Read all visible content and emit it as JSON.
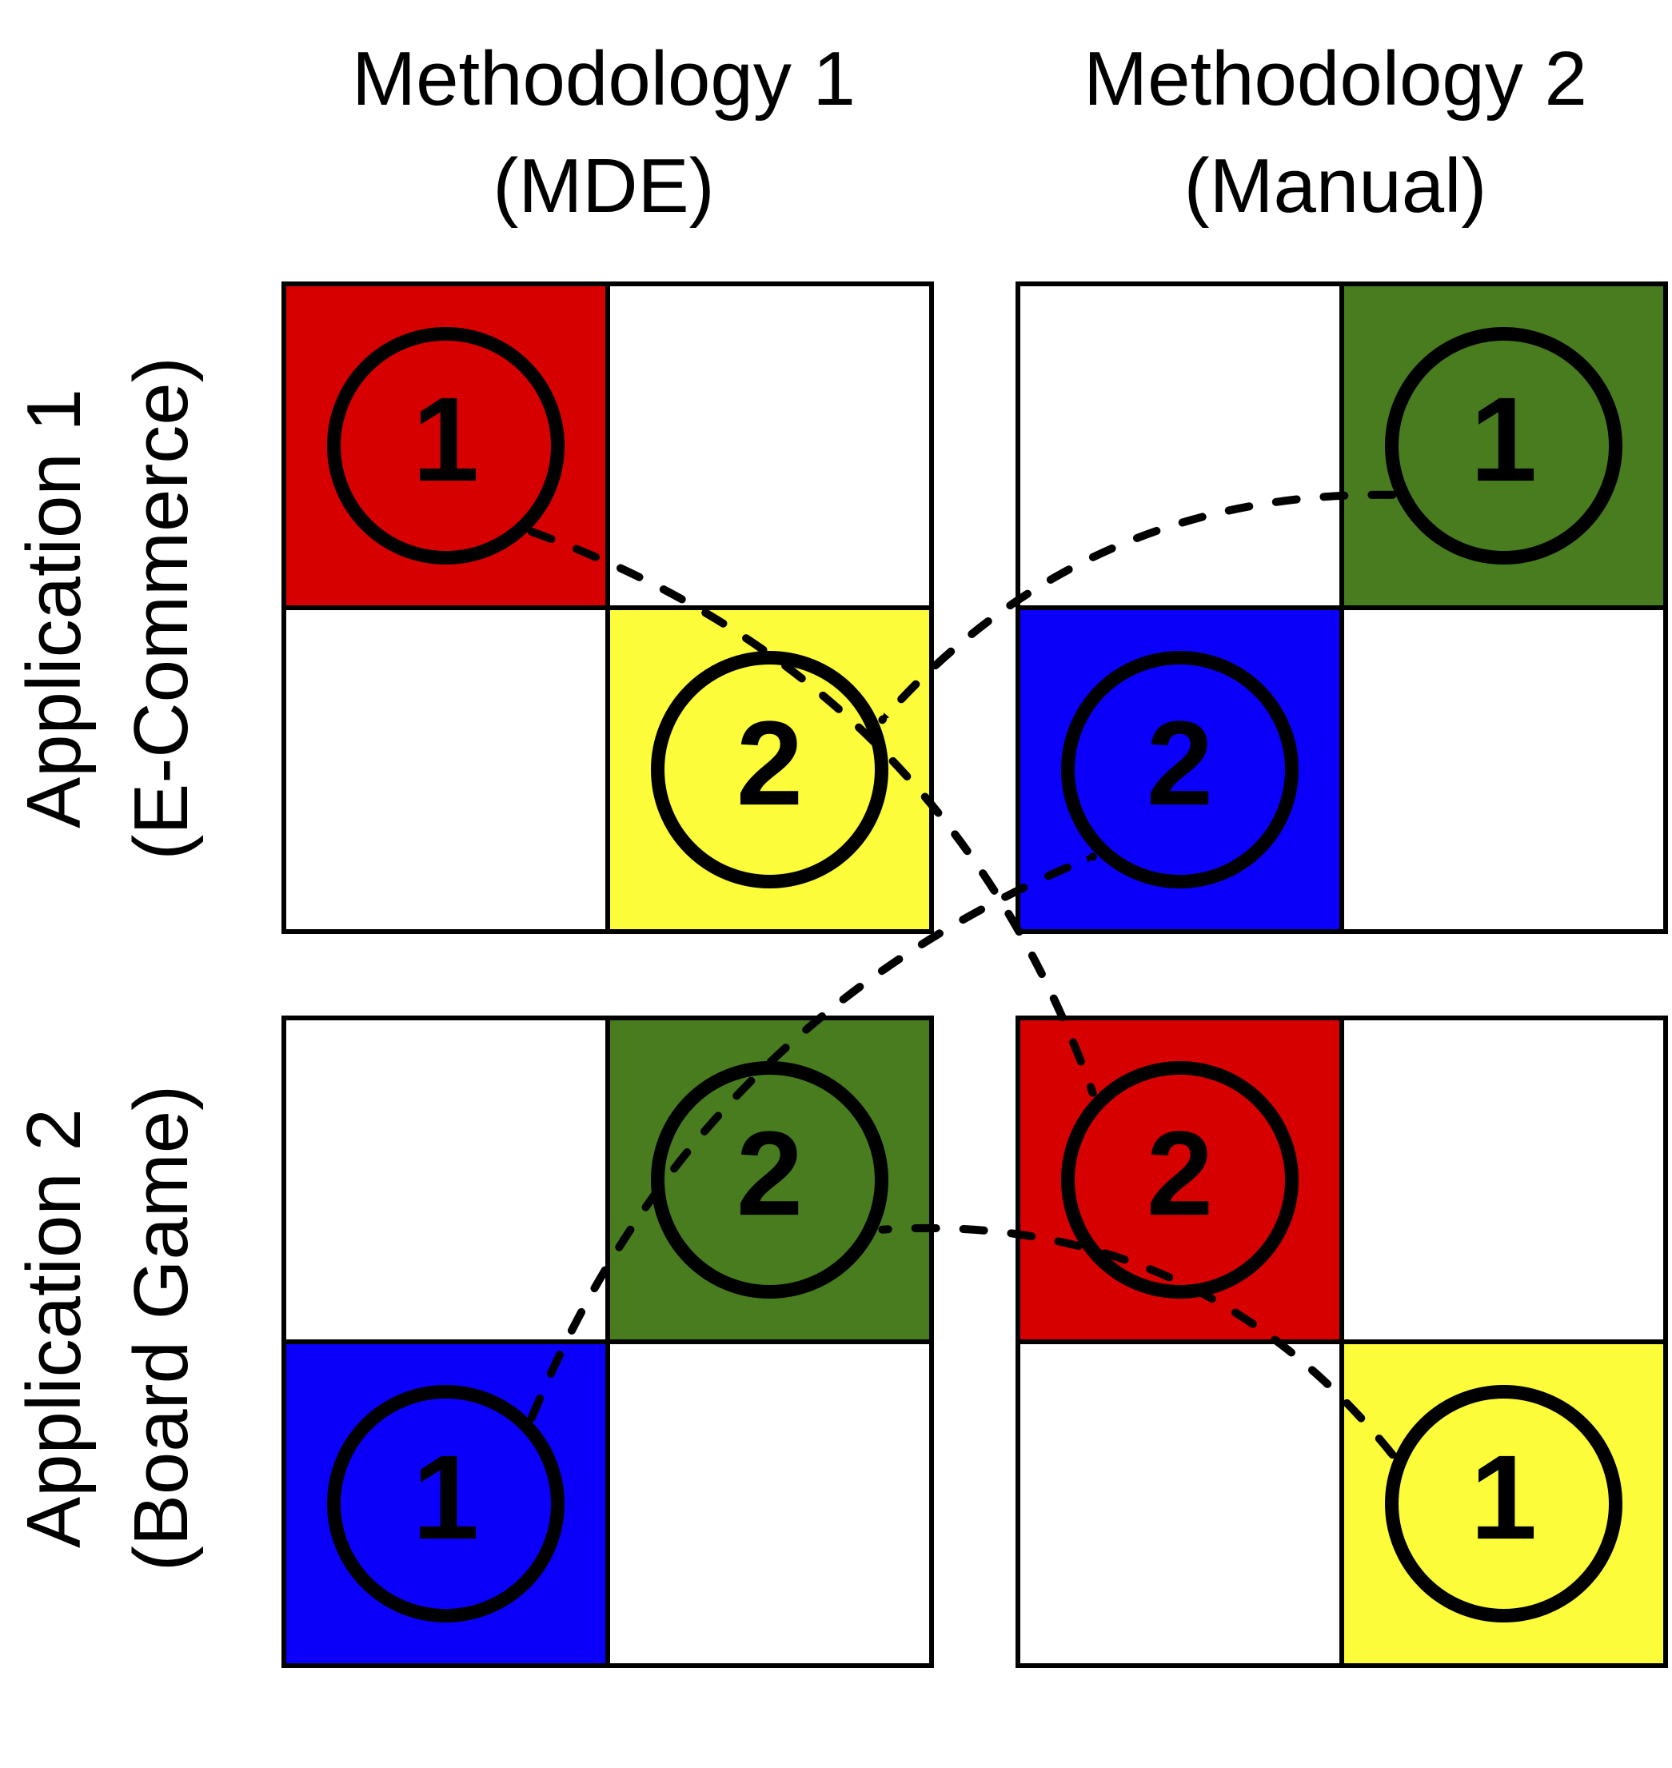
{
  "columns": [
    {
      "line1": "Methodology 1",
      "line2": "(MDE)"
    },
    {
      "line1": "Methodology 2",
      "line2": "(Manual)"
    }
  ],
  "rows": [
    {
      "line1": "Application 1",
      "line2": "(E-Commerce)"
    },
    {
      "line1": "Application 2",
      "line2": "(Board Game)"
    }
  ],
  "colors": {
    "red": "#d60000",
    "yellow": "#fcfc3a",
    "green": "#487c1e",
    "blue": "#0a00fa",
    "white": "#ffffff",
    "ink": "#000000"
  },
  "quadrants": [
    {
      "id": "app1-mde",
      "cells": [
        {
          "pos": "top-left",
          "color": "red",
          "label": "1"
        },
        {
          "pos": "bottom-right",
          "color": "yellow",
          "label": "2"
        }
      ]
    },
    {
      "id": "app1-manual",
      "cells": [
        {
          "pos": "top-right",
          "color": "green",
          "label": "1"
        },
        {
          "pos": "bottom-left",
          "color": "blue",
          "label": "2"
        }
      ]
    },
    {
      "id": "app2-mde",
      "cells": [
        {
          "pos": "top-right",
          "color": "green",
          "label": "2"
        },
        {
          "pos": "bottom-left",
          "color": "blue",
          "label": "1"
        }
      ]
    },
    {
      "id": "app2-manual",
      "cells": [
        {
          "pos": "top-left",
          "color": "red",
          "label": "2"
        },
        {
          "pos": "bottom-right",
          "color": "yellow",
          "label": "1"
        }
      ]
    }
  ],
  "sequences": [
    {
      "from": "app1-mde.1",
      "to": "app2-manual.2"
    },
    {
      "from": "app1-manual.1",
      "to": "app1-mde.2"
    },
    {
      "from": "app2-mde.1",
      "to": "app1-manual.2"
    },
    {
      "from": "app2-manual.1",
      "to": "app2-mde.2"
    }
  ]
}
